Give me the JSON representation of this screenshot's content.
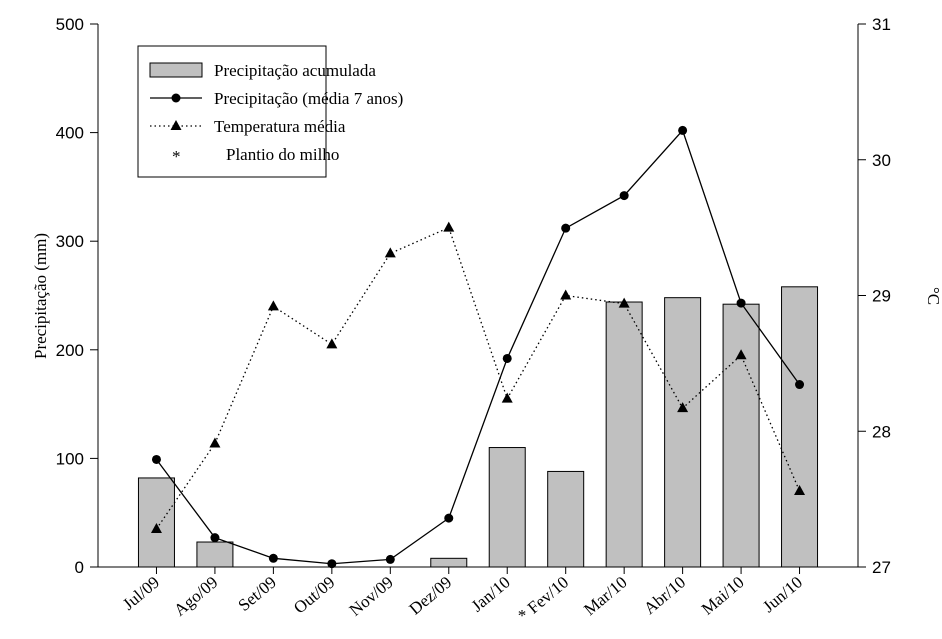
{
  "chart_data": {
    "type": "bar-line",
    "categories": [
      "Jul/09",
      "Ago/09",
      "Set/09",
      "Out/09",
      "Nov/09",
      "Dez/09",
      "Jan/10",
      "Fev/10",
      "Mar/10",
      "Abr/10",
      "Mai/10",
      "Jun/10"
    ],
    "y_label": "Precipitação (mm)",
    "y2_label": "°C",
    "ylim": [
      0,
      500
    ],
    "yticks": [
      0,
      100,
      200,
      300,
      400,
      500
    ],
    "y2lim": [
      27,
      31
    ],
    "y2ticks": [
      27,
      28,
      29,
      30,
      31
    ],
    "series": [
      {
        "name": "Precipitação acumulada",
        "type": "bar",
        "color": "#c0c0c0",
        "values": [
          82,
          23,
          0,
          0,
          0,
          8,
          110,
          88,
          244,
          248,
          242,
          258
        ]
      },
      {
        "name": "Precipitação (média 7 anos)",
        "type": "line",
        "marker": "circle",
        "dash": "solid",
        "color": "#000000",
        "values": [
          99,
          27,
          8,
          3,
          7,
          45,
          192,
          312,
          342,
          402,
          243,
          168
        ]
      },
      {
        "name": "Temperatura média",
        "type": "line",
        "marker": "triangle",
        "dash": "dotted",
        "color": "#000000",
        "axis": "y2",
        "values": [
          27.28,
          27.91,
          28.92,
          28.64,
          29.31,
          29.5,
          28.24,
          29.0,
          28.94,
          28.17,
          28.56,
          27.56
        ]
      }
    ],
    "planting": {
      "name": "Plantio do milho",
      "symbol": "*",
      "category_index": 7
    }
  }
}
